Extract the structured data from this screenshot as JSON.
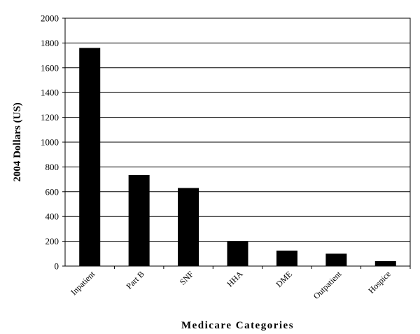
{
  "chart_data": {
    "type": "bar",
    "title": "",
    "xlabel": "Medicare Categories",
    "ylabel": "2004 Dollars (US)",
    "ylim": [
      0,
      2000
    ],
    "yticks": [
      0,
      200,
      400,
      600,
      800,
      1000,
      1200,
      1400,
      1600,
      1800,
      2000
    ],
    "categories": [
      "Inpatient",
      "Part B",
      "SNF",
      "HHA",
      "DME",
      "Outpatient",
      "Hospice"
    ],
    "values": [
      1760,
      735,
      630,
      200,
      125,
      100,
      40
    ],
    "grid": true,
    "legend": "none",
    "colors": {
      "bar": "#000000",
      "grid": "#000000",
      "background": "#ffffff"
    }
  }
}
